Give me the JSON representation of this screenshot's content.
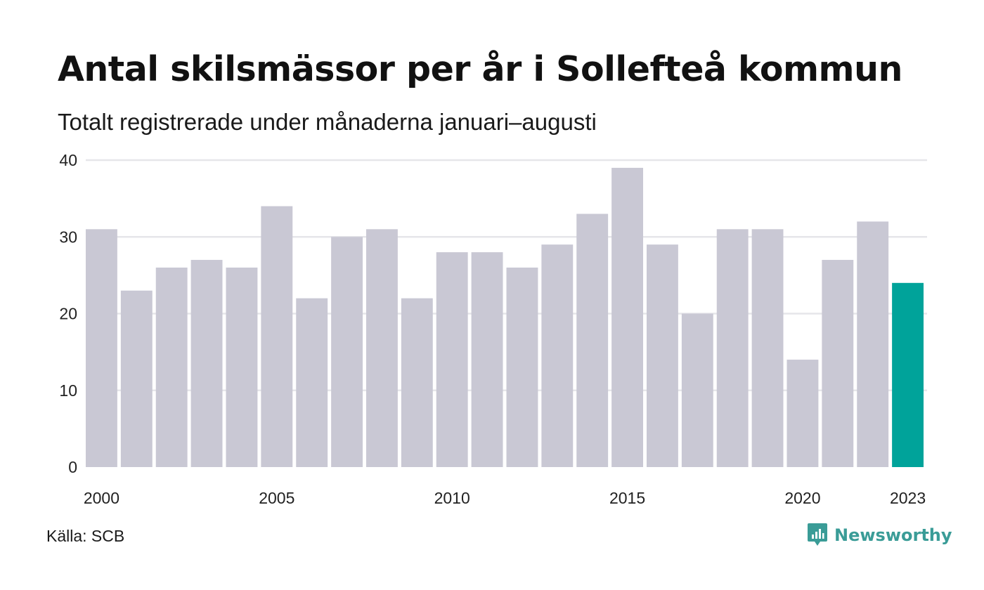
{
  "header": {
    "title": "Antal skilsmässor per år i Sollefteå kommun",
    "subtitle": "Totalt registrerade under månaderna januari–augusti"
  },
  "footer": {
    "source": "Källa: SCB",
    "brand": "Newsworthy",
    "brand_icon": "newsworthy-logo-icon"
  },
  "colors": {
    "bar": "#c9c8d4",
    "highlight": "#00a39a",
    "grid": "#e6e6ea",
    "brand": "#3a9c97"
  },
  "chart_data": {
    "type": "bar",
    "title": "Antal skilsmässor per år i Sollefteå kommun",
    "subtitle": "Totalt registrerade under månaderna januari–augusti",
    "categories": [
      "2000",
      "2001",
      "2002",
      "2003",
      "2004",
      "2005",
      "2006",
      "2007",
      "2008",
      "2009",
      "2010",
      "2011",
      "2012",
      "2013",
      "2014",
      "2015",
      "2016",
      "2017",
      "2018",
      "2019",
      "2020",
      "2021",
      "2022",
      "2023"
    ],
    "values": [
      31,
      23,
      26,
      27,
      26,
      34,
      22,
      30,
      31,
      22,
      28,
      28,
      26,
      29,
      33,
      39,
      29,
      20,
      31,
      31,
      14,
      27,
      32,
      24
    ],
    "highlight": "2023",
    "x_tick_labels": [
      "2000",
      "2005",
      "2010",
      "2015",
      "2020",
      "2023"
    ],
    "y_ticks": [
      0,
      10,
      20,
      30,
      40
    ],
    "ylim": [
      0,
      40
    ],
    "xlabel": "",
    "ylabel": "",
    "grid": true,
    "legend": "none"
  }
}
